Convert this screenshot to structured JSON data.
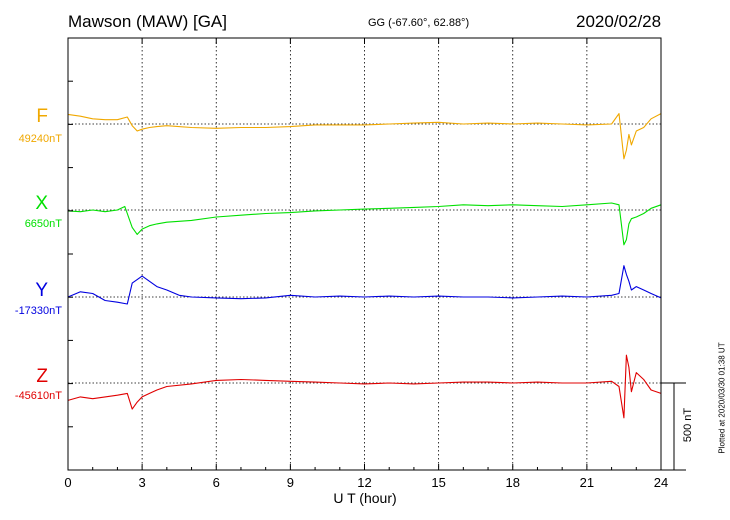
{
  "header": {
    "station": "Mawson (MAW)  [GA]",
    "coords": "GG (-67.60°,  62.88°)",
    "date": "2020/02/28"
  },
  "footer": {
    "plotted": "Plotted at 2020/03/30 01:38 UT"
  },
  "chart_data": {
    "type": "line",
    "title": "Mawson (MAW)  [GA]",
    "xlabel": "U T (hour)",
    "xlim": [
      0,
      24
    ],
    "xticks": [
      0,
      3,
      6,
      9,
      12,
      15,
      18,
      21,
      24
    ],
    "grid": "vertical dotted lines every 3 hours; dotted baseline per component",
    "scale_bar": {
      "value": 500,
      "unit": "nT",
      "label": "500 nT"
    },
    "series": [
      {
        "name": "F",
        "baseline": "49240nT",
        "color": "#f0a800",
        "x": [
          0,
          0.5,
          1,
          1.5,
          2,
          2.4,
          2.6,
          2.8,
          3,
          3.3,
          3.6,
          4,
          5,
          6,
          7,
          8,
          9,
          10,
          11,
          12,
          13,
          14,
          15,
          16,
          17,
          18,
          19,
          20,
          21,
          22,
          22.3,
          22.5,
          22.6,
          22.7,
          22.8,
          23,
          23.3,
          23.6,
          24
        ],
        "y": [
          55,
          45,
          30,
          25,
          25,
          40,
          -10,
          -40,
          -30,
          -20,
          -15,
          -10,
          -20,
          -25,
          -20,
          -20,
          -15,
          -5,
          -5,
          -5,
          0,
          5,
          10,
          0,
          5,
          0,
          5,
          0,
          -5,
          0,
          60,
          -200,
          -150,
          -60,
          -120,
          -40,
          -20,
          30,
          60
        ]
      },
      {
        "name": "X",
        "baseline": "6650nT",
        "color": "#00e000",
        "x": [
          0,
          0.5,
          1,
          1.5,
          2,
          2.3,
          2.6,
          2.8,
          3,
          3.3,
          3.6,
          4,
          5,
          6,
          7,
          8,
          9,
          10,
          11,
          12,
          13,
          14,
          15,
          16,
          17,
          18,
          19,
          20,
          21,
          22,
          22.3,
          22.5,
          22.6,
          22.7,
          22.8,
          23,
          23.3,
          23.6,
          24
        ],
        "y": [
          -5,
          -10,
          0,
          -10,
          0,
          20,
          -100,
          -140,
          -110,
          -90,
          -80,
          -70,
          -60,
          -40,
          -30,
          -20,
          -15,
          -5,
          0,
          5,
          10,
          15,
          20,
          30,
          25,
          30,
          25,
          20,
          30,
          40,
          30,
          -200,
          -170,
          -80,
          -50,
          -40,
          -20,
          10,
          30
        ]
      },
      {
        "name": "Y",
        "baseline": "-17330nT",
        "color": "#0000e0",
        "x": [
          0,
          0.5,
          1,
          1.5,
          2,
          2.4,
          2.6,
          2.8,
          3,
          3.3,
          3.6,
          4,
          4.5,
          5,
          6,
          7,
          8,
          9,
          10,
          11,
          12,
          13,
          14,
          15,
          16,
          17,
          18,
          19,
          20,
          21,
          22,
          22.3,
          22.5,
          22.6,
          22.7,
          22.8,
          23,
          23.3,
          23.6,
          24
        ],
        "y": [
          0,
          30,
          20,
          -20,
          -30,
          -40,
          80,
          100,
          120,
          90,
          60,
          40,
          10,
          0,
          -5,
          -10,
          -5,
          10,
          0,
          5,
          0,
          5,
          0,
          5,
          0,
          0,
          -5,
          0,
          5,
          0,
          10,
          20,
          180,
          130,
          90,
          40,
          60,
          40,
          20,
          -5
        ]
      },
      {
        "name": "Z",
        "baseline": "-45610nT",
        "color": "#e00000",
        "x": [
          0,
          0.5,
          1,
          1.5,
          2,
          2.4,
          2.6,
          2.8,
          3,
          3.3,
          3.6,
          4,
          5,
          6,
          7,
          8,
          9,
          10,
          11,
          12,
          13,
          14,
          15,
          16,
          17,
          18,
          19,
          20,
          21,
          22,
          22.3,
          22.5,
          22.6,
          22.7,
          22.8,
          23,
          23.3,
          23.6,
          24
        ],
        "y": [
          -100,
          -80,
          -90,
          -80,
          -70,
          -60,
          -150,
          -110,
          -80,
          -60,
          -40,
          -20,
          -5,
          15,
          20,
          15,
          10,
          5,
          0,
          -5,
          0,
          -5,
          0,
          5,
          5,
          0,
          5,
          0,
          0,
          10,
          -20,
          -200,
          160,
          90,
          -50,
          60,
          20,
          -40,
          -60
        ]
      }
    ]
  }
}
